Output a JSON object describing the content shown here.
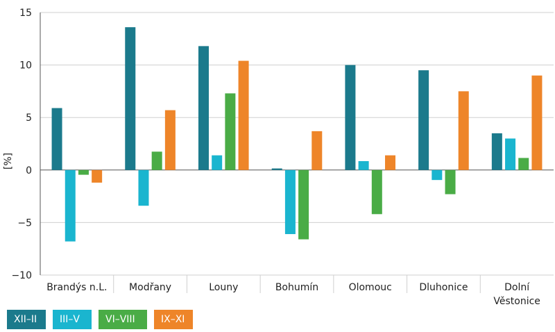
{
  "chart_data": {
    "type": "bar",
    "ylabel": "[%]",
    "ylim": [
      -10,
      15
    ],
    "yticks": [
      "15",
      "10",
      "5",
      "0",
      "−5",
      "−10"
    ],
    "grid": true,
    "legend_position": "bottom-left",
    "categories": [
      "Brandýs n.L.",
      "Modřany",
      "Louny",
      "Bohumín",
      "Olomouc",
      "Dluhonice",
      "Dolní Věstonice"
    ],
    "series": [
      {
        "name": "XII–II",
        "color": "#1b7a8c",
        "values": [
          5.9,
          13.6,
          11.8,
          0.15,
          10.0,
          9.5,
          3.5
        ]
      },
      {
        "name": "III–V",
        "color": "#1ab5cf",
        "values": [
          -6.8,
          -3.4,
          1.4,
          -6.1,
          0.85,
          -0.95,
          3.0
        ]
      },
      {
        "name": "VI–VIII",
        "color": "#4aac46",
        "values": [
          -0.45,
          1.75,
          7.3,
          -6.6,
          -4.2,
          -2.3,
          1.15
        ]
      },
      {
        "name": "IX–XI",
        "color": "#ee8529",
        "values": [
          -1.2,
          5.7,
          10.4,
          3.7,
          1.4,
          7.5,
          9.0
        ]
      }
    ]
  }
}
